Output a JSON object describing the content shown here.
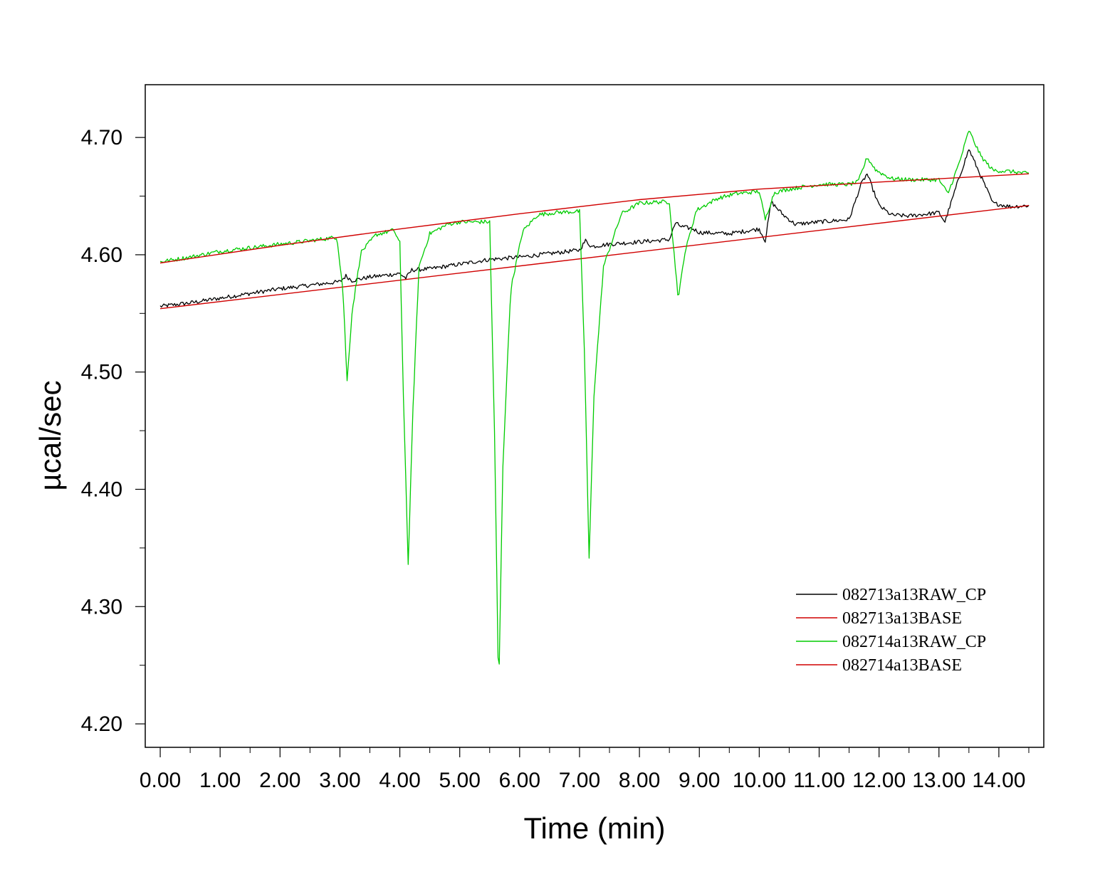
{
  "chart_data": {
    "type": "line",
    "title": "",
    "xlabel": "Time (min)",
    "ylabel": "µcal/sec",
    "xlim": [
      -0.25,
      14.75
    ],
    "ylim": [
      4.18,
      4.745
    ],
    "x_ticks": [
      0,
      1,
      2,
      3,
      4,
      5,
      6,
      7,
      8,
      9,
      10,
      11,
      12,
      13,
      14
    ],
    "x_tick_labels": [
      "0.00",
      "1.00",
      "2.00",
      "3.00",
      "4.00",
      "5.00",
      "6.00",
      "7.00",
      "8.00",
      "9.00",
      "10.00",
      "11.00",
      "12.00",
      "13.00",
      "14.00"
    ],
    "y_ticks": [
      4.2,
      4.3,
      4.4,
      4.5,
      4.6,
      4.7
    ],
    "y_tick_labels": [
      "4.20",
      "4.30",
      "4.40",
      "4.50",
      "4.60",
      "4.70"
    ],
    "grid": false,
    "legend_position": "bottom-right",
    "series": [
      {
        "name": "082713a13RAW_CP",
        "color": "#000000",
        "x": [
          0.0,
          0.5,
          1.0,
          1.5,
          2.0,
          2.5,
          3.0,
          3.1,
          3.2,
          3.5,
          4.0,
          4.1,
          4.2,
          4.5,
          5.0,
          5.5,
          6.0,
          6.5,
          7.0,
          7.1,
          7.2,
          7.5,
          8.0,
          8.5,
          8.6,
          8.7,
          8.9,
          9.0,
          9.5,
          10.0,
          10.1,
          10.2,
          10.4,
          10.6,
          11.0,
          11.5,
          11.7,
          11.8,
          12.0,
          12.2,
          12.5,
          13.0,
          13.1,
          13.3,
          13.5,
          13.7,
          13.9,
          14.2,
          14.5
        ],
        "y": [
          4.556,
          4.559,
          4.563,
          4.567,
          4.571,
          4.574,
          4.577,
          4.582,
          4.578,
          4.581,
          4.584,
          4.58,
          4.587,
          4.588,
          4.592,
          4.596,
          4.598,
          4.601,
          4.604,
          4.612,
          4.607,
          4.609,
          4.611,
          4.613,
          4.627,
          4.624,
          4.622,
          4.619,
          4.618,
          4.622,
          4.612,
          4.645,
          4.634,
          4.626,
          4.628,
          4.63,
          4.66,
          4.669,
          4.642,
          4.634,
          4.633,
          4.636,
          4.628,
          4.66,
          4.69,
          4.667,
          4.644,
          4.641,
          4.642
        ]
      },
      {
        "name": "082713a13BASE",
        "color": "#d00000",
        "x": [
          0.0,
          14.5
        ],
        "y": [
          4.554,
          4.642
        ]
      },
      {
        "name": "082714a13RAW_CP",
        "color": "#00cc00",
        "x": [
          0.0,
          0.5,
          1.0,
          1.5,
          2.0,
          2.5,
          2.95,
          3.05,
          3.12,
          3.2,
          3.35,
          3.6,
          3.9,
          4.0,
          4.06,
          4.14,
          4.22,
          4.32,
          4.5,
          4.8,
          5.0,
          5.3,
          5.5,
          5.58,
          5.65,
          5.72,
          5.85,
          6.05,
          6.3,
          6.6,
          7.0,
          7.08,
          7.16,
          7.24,
          7.4,
          7.7,
          8.0,
          8.3,
          8.5,
          8.58,
          8.65,
          8.75,
          8.95,
          9.3,
          9.6,
          10.0,
          10.1,
          10.25,
          10.5,
          11.0,
          11.5,
          11.65,
          11.8,
          11.95,
          12.2,
          12.5,
          13.0,
          13.15,
          13.35,
          13.5,
          13.7,
          13.9,
          14.2,
          14.5
        ],
        "y": [
          4.594,
          4.598,
          4.603,
          4.606,
          4.609,
          4.612,
          4.615,
          4.57,
          4.492,
          4.55,
          4.602,
          4.617,
          4.621,
          4.61,
          4.48,
          4.335,
          4.47,
          4.59,
          4.618,
          4.626,
          4.628,
          4.628,
          4.628,
          4.45,
          4.223,
          4.42,
          4.57,
          4.62,
          4.634,
          4.636,
          4.637,
          4.52,
          4.34,
          4.48,
          4.59,
          4.635,
          4.644,
          4.645,
          4.645,
          4.6,
          4.562,
          4.6,
          4.638,
          4.648,
          4.652,
          4.654,
          4.63,
          4.653,
          4.656,
          4.66,
          4.66,
          4.662,
          4.683,
          4.672,
          4.665,
          4.664,
          4.664,
          4.652,
          4.68,
          4.706,
          4.684,
          4.672,
          4.671,
          4.669
        ]
      },
      {
        "name": "082714a13BASE",
        "color": "#d00000",
        "x": [
          0.0,
          2.0,
          4.0,
          6.0,
          8.0,
          10.0,
          12.0,
          14.5
        ],
        "y": [
          4.593,
          4.608,
          4.622,
          4.635,
          4.647,
          4.656,
          4.662,
          4.669
        ]
      }
    ]
  }
}
